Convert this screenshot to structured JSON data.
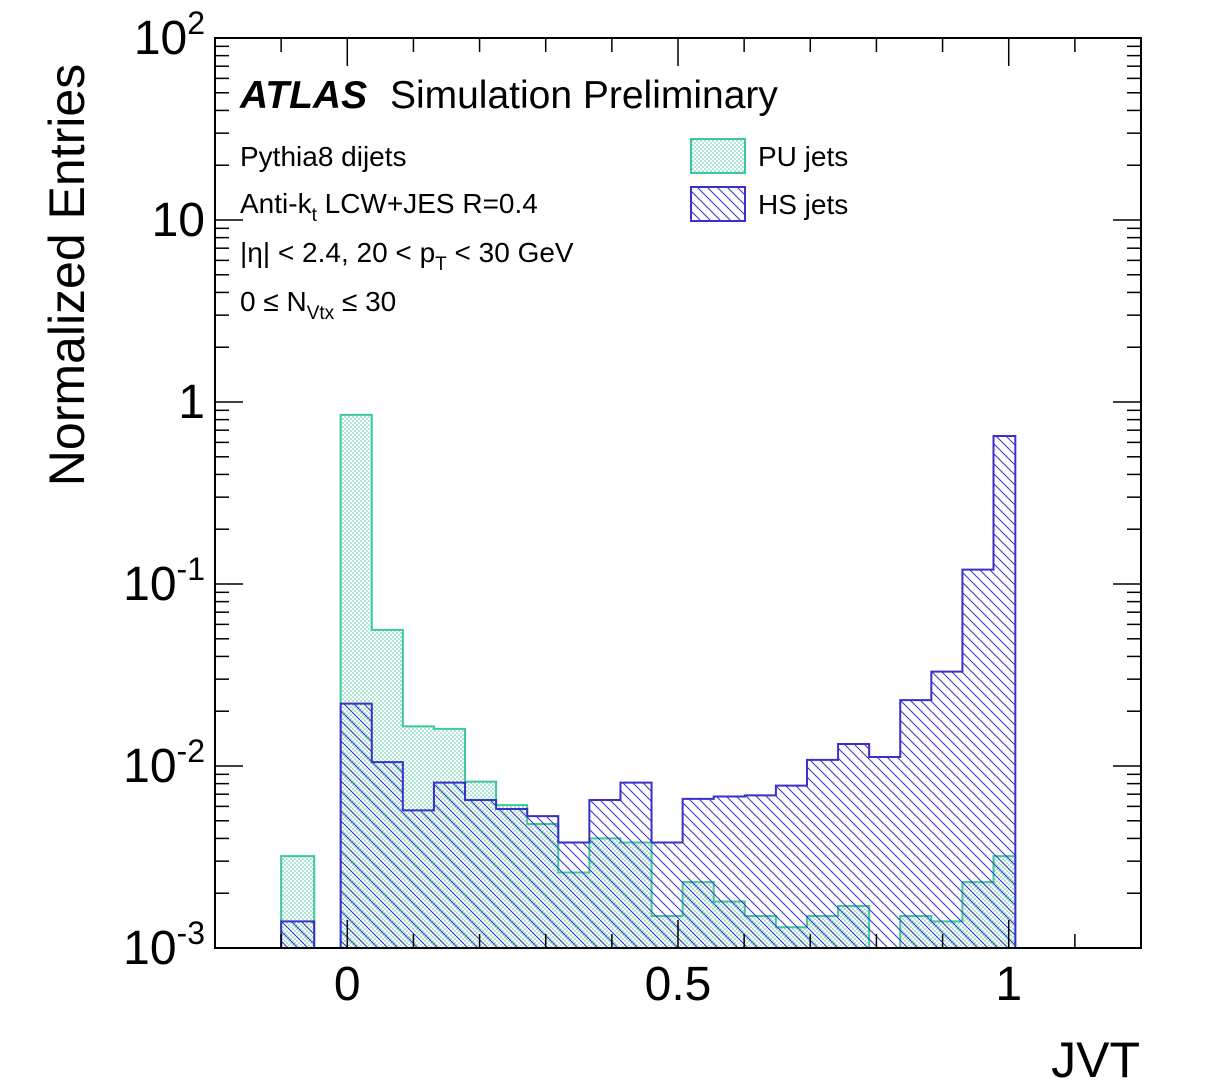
{
  "chart_data": {
    "type": "histogram",
    "xlabel": "JVT",
    "ylabel": "Normalized Entries",
    "xlim": [
      -0.2,
      1.2
    ],
    "ylim": [
      0.001,
      100
    ],
    "yscale": "log",
    "x_ticks": [
      {
        "value": 0,
        "label": "0"
      },
      {
        "value": 0.5,
        "label": "0.5"
      },
      {
        "value": 1,
        "label": "1"
      }
    ],
    "y_ticks": [
      {
        "value": 0.001,
        "base": "10",
        "exp": "-3"
      },
      {
        "value": 0.01,
        "base": "10",
        "exp": "-2"
      },
      {
        "value": 0.1,
        "base": "10",
        "exp": "-1"
      },
      {
        "value": 1,
        "base": "1",
        "exp": ""
      },
      {
        "value": 10,
        "base": "10",
        "exp": ""
      },
      {
        "value": 100,
        "base": "10",
        "exp": "2"
      }
    ],
    "annotations": {
      "atlas_bold": "ATLAS",
      "atlas_rest": "Simulation Preliminary",
      "line1": "Pythia8 dijets",
      "line2_a": "Anti-k",
      "line2_sub": "t",
      "line2_b": " LCW+JES R=0.4",
      "line3_a": "|η| < 2.4, 20 < p",
      "line3_sub": "T",
      "line3_b": " < 30 GeV",
      "line4_a": "0 ≤ N",
      "line4_sub": "Vtx",
      "line4_b": " ≤ 30"
    },
    "legend_position": "top-right",
    "series": [
      {
        "name": "PU jets",
        "color": "#3ec79a",
        "fill": "dots",
        "bins": [
          {
            "x0": -0.1,
            "x1": -0.05,
            "y": 0.0032
          },
          {
            "x0": -0.01,
            "x1": 0.037,
            "y": 0.85
          },
          {
            "x0": 0.037,
            "x1": 0.084,
            "y": 0.056
          },
          {
            "x0": 0.084,
            "x1": 0.131,
            "y": 0.0165
          },
          {
            "x0": 0.131,
            "x1": 0.178,
            "y": 0.016
          },
          {
            "x0": 0.178,
            "x1": 0.225,
            "y": 0.0082
          },
          {
            "x0": 0.225,
            "x1": 0.272,
            "y": 0.0061
          },
          {
            "x0": 0.272,
            "x1": 0.319,
            "y": 0.0048
          },
          {
            "x0": 0.319,
            "x1": 0.366,
            "y": 0.0026
          },
          {
            "x0": 0.366,
            "x1": 0.413,
            "y": 0.004
          },
          {
            "x0": 0.413,
            "x1": 0.46,
            "y": 0.0038
          },
          {
            "x0": 0.46,
            "x1": 0.507,
            "y": 0.0015
          },
          {
            "x0": 0.507,
            "x1": 0.554,
            "y": 0.0023
          },
          {
            "x0": 0.554,
            "x1": 0.601,
            "y": 0.0018
          },
          {
            "x0": 0.601,
            "x1": 0.648,
            "y": 0.0015
          },
          {
            "x0": 0.648,
            "x1": 0.695,
            "y": 0.0013
          },
          {
            "x0": 0.695,
            "x1": 0.742,
            "y": 0.0015
          },
          {
            "x0": 0.742,
            "x1": 0.789,
            "y": 0.0017
          },
          {
            "x0": 0.789,
            "x1": 0.836,
            "y": 0.00085
          },
          {
            "x0": 0.836,
            "x1": 0.883,
            "y": 0.0015
          },
          {
            "x0": 0.883,
            "x1": 0.93,
            "y": 0.0014
          },
          {
            "x0": 0.93,
            "x1": 0.977,
            "y": 0.0023
          },
          {
            "x0": 0.977,
            "x1": 1.01,
            "y": 0.0032
          }
        ]
      },
      {
        "name": "HS jets",
        "color": "#3b2fc9",
        "fill": "hatch",
        "bins": [
          {
            "x0": -0.1,
            "x1": -0.05,
            "y": 0.0014
          },
          {
            "x0": -0.01,
            "x1": 0.037,
            "y": 0.022
          },
          {
            "x0": 0.037,
            "x1": 0.084,
            "y": 0.0105
          },
          {
            "x0": 0.084,
            "x1": 0.131,
            "y": 0.0057
          },
          {
            "x0": 0.131,
            "x1": 0.178,
            "y": 0.0081
          },
          {
            "x0": 0.178,
            "x1": 0.225,
            "y": 0.0065
          },
          {
            "x0": 0.225,
            "x1": 0.272,
            "y": 0.0058
          },
          {
            "x0": 0.272,
            "x1": 0.319,
            "y": 0.0053
          },
          {
            "x0": 0.319,
            "x1": 0.366,
            "y": 0.0038
          },
          {
            "x0": 0.366,
            "x1": 0.413,
            "y": 0.0065
          },
          {
            "x0": 0.413,
            "x1": 0.46,
            "y": 0.0081
          },
          {
            "x0": 0.46,
            "x1": 0.507,
            "y": 0.0038
          },
          {
            "x0": 0.507,
            "x1": 0.554,
            "y": 0.0066
          },
          {
            "x0": 0.554,
            "x1": 0.601,
            "y": 0.0068
          },
          {
            "x0": 0.601,
            "x1": 0.648,
            "y": 0.0069
          },
          {
            "x0": 0.648,
            "x1": 0.695,
            "y": 0.0078
          },
          {
            "x0": 0.695,
            "x1": 0.742,
            "y": 0.0108
          },
          {
            "x0": 0.742,
            "x1": 0.789,
            "y": 0.0132
          },
          {
            "x0": 0.789,
            "x1": 0.836,
            "y": 0.0112
          },
          {
            "x0": 0.836,
            "x1": 0.883,
            "y": 0.023
          },
          {
            "x0": 0.883,
            "x1": 0.93,
            "y": 0.033
          },
          {
            "x0": 0.93,
            "x1": 0.977,
            "y": 0.12
          },
          {
            "x0": 0.977,
            "x1": 1.01,
            "y": 0.65
          }
        ]
      }
    ]
  }
}
